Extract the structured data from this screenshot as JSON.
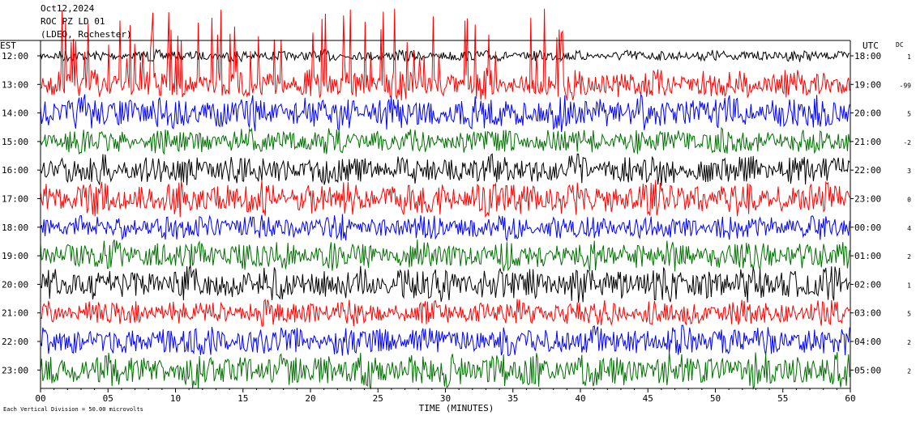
{
  "header": {
    "date": "Oct12,2024",
    "station": "ROC PZ LD 01",
    "network": "(LDEO, Rochester)"
  },
  "left_axis_label": "EST",
  "right_axis_label": "UTC",
  "dc_label": "DC",
  "footer_note": "Each Vertical Division = 50.00 microvolts",
  "chart_data": {
    "type": "line",
    "xlabel": "TIME (MINUTES)",
    "xlim": [
      0,
      60
    ],
    "x_ticks": [
      "00",
      "05",
      "10",
      "15",
      "20",
      "25",
      "30",
      "35",
      "40",
      "45",
      "50",
      "55",
      "60"
    ],
    "colors": [
      "#000000",
      "#ff0000",
      "#0000ff",
      "#007000"
    ],
    "rows": [
      {
        "est": "12:00",
        "utc": "18:00",
        "dc": "1"
      },
      {
        "est": "13:00",
        "utc": "19:00",
        "dc": "-99"
      },
      {
        "est": "14:00",
        "utc": "20:00",
        "dc": "5"
      },
      {
        "est": "15:00",
        "utc": "21:00",
        "dc": "-2"
      },
      {
        "est": "16:00",
        "utc": "22:00",
        "dc": "3"
      },
      {
        "est": "17:00",
        "utc": "23:00",
        "dc": "0"
      },
      {
        "est": "18:00",
        "utc": "00:00",
        "dc": "4"
      },
      {
        "est": "19:00",
        "utc": "01:00",
        "dc": "2"
      },
      {
        "est": "20:00",
        "utc": "02:00",
        "dc": "1"
      },
      {
        "est": "21:00",
        "utc": "03:00",
        "dc": "5"
      },
      {
        "est": "22:00",
        "utc": "04:00",
        "dc": "2"
      },
      {
        "est": "23:00",
        "utc": "05:00",
        "dc": "2"
      }
    ]
  }
}
